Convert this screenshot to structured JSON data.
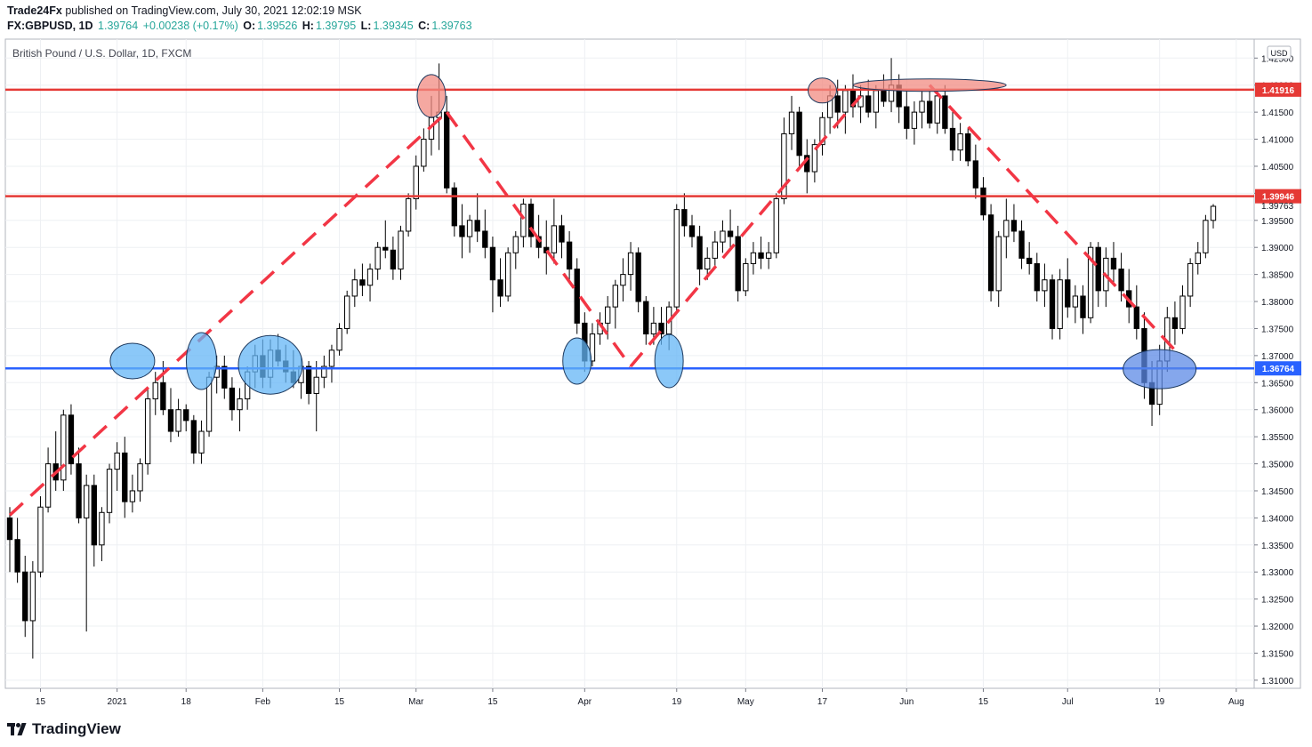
{
  "header": {
    "author": "Trade24Fx",
    "published_text": " published on TradingView.com, July 30, 2021 12:02:19 MSK",
    "symbol": "FX:GBPUSD, 1D",
    "last": "1.39764",
    "change": "+0.00238 (+0.17%)",
    "o_label": "O:",
    "o_val": "1.39526",
    "h_label": "H:",
    "h_val": "1.39795",
    "l_label": "L:",
    "l_val": "1.39345",
    "c_label": "C:",
    "c_val": "1.39763"
  },
  "footer": {
    "brand": "TradingView"
  },
  "colors": {
    "up": "#ffffff",
    "down": "#000000",
    "resistance": "#e53935",
    "support": "#2962ff",
    "trend": "#f23645",
    "ellipse_red": "#f28b82",
    "ellipse_blue": "#64b5f6",
    "grid": "#eef0f3"
  },
  "chart_data": {
    "type": "candlestick",
    "title": "British Pound / U.S. Dollar, 1D, FXCM",
    "currency_badge": "USD",
    "ylim": [
      1.3085,
      1.4285
    ],
    "y_ticks": [
      "1.42500",
      "1.42000",
      "1.41500",
      "1.41000",
      "1.40500",
      "1.40000",
      "1.39500",
      "1.39000",
      "1.38500",
      "1.38000",
      "1.37500",
      "1.37000",
      "1.36500",
      "1.36000",
      "1.35500",
      "1.35000",
      "1.34500",
      "1.34000",
      "1.33500",
      "1.33000",
      "1.32500",
      "1.32000",
      "1.31500",
      "1.31000"
    ],
    "x_ticks": [
      {
        "label": "15",
        "idx": 4
      },
      {
        "label": "2021",
        "idx": 14
      },
      {
        "label": "18",
        "idx": 23
      },
      {
        "label": "Feb",
        "idx": 33
      },
      {
        "label": "15",
        "idx": 43
      },
      {
        "label": "Mar",
        "idx": 53
      },
      {
        "label": "15",
        "idx": 63
      },
      {
        "label": "Apr",
        "idx": 75
      },
      {
        "label": "19",
        "idx": 87
      },
      {
        "label": "May",
        "idx": 96
      },
      {
        "label": "17",
        "idx": 106
      },
      {
        "label": "Jun",
        "idx": 117
      },
      {
        "label": "15",
        "idx": 127
      },
      {
        "label": "Jul",
        "idx": 138
      },
      {
        "label": "19",
        "idx": 150
      },
      {
        "label": "Aug",
        "idx": 160
      }
    ],
    "levels": [
      {
        "name": "resistance-high",
        "value": 1.41916,
        "label": "1.41916",
        "color": "#e53935"
      },
      {
        "name": "resistance-mid",
        "value": 1.39946,
        "label": "1.39946",
        "color": "#e53935"
      },
      {
        "name": "support",
        "value": 1.36764,
        "label": "1.36764",
        "color": "#2962ff"
      }
    ],
    "last_price_label": "1.39763",
    "candles": [
      {
        "o": 1.34,
        "h": 1.342,
        "l": 1.33,
        "c": 1.336
      },
      {
        "o": 1.336,
        "h": 1.34,
        "l": 1.328,
        "c": 1.33
      },
      {
        "o": 1.33,
        "h": 1.333,
        "l": 1.318,
        "c": 1.321
      },
      {
        "o": 1.321,
        "h": 1.332,
        "l": 1.314,
        "c": 1.33
      },
      {
        "o": 1.33,
        "h": 1.344,
        "l": 1.329,
        "c": 1.342
      },
      {
        "o": 1.342,
        "h": 1.353,
        "l": 1.341,
        "c": 1.35
      },
      {
        "o": 1.35,
        "h": 1.356,
        "l": 1.345,
        "c": 1.347
      },
      {
        "o": 1.347,
        "h": 1.36,
        "l": 1.345,
        "c": 1.359
      },
      {
        "o": 1.359,
        "h": 1.361,
        "l": 1.348,
        "c": 1.35
      },
      {
        "o": 1.35,
        "h": 1.353,
        "l": 1.339,
        "c": 1.34
      },
      {
        "o": 1.34,
        "h": 1.348,
        "l": 1.319,
        "c": 1.346
      },
      {
        "o": 1.346,
        "h": 1.348,
        "l": 1.331,
        "c": 1.335
      },
      {
        "o": 1.335,
        "h": 1.342,
        "l": 1.332,
        "c": 1.341
      },
      {
        "o": 1.341,
        "h": 1.35,
        "l": 1.339,
        "c": 1.349
      },
      {
        "o": 1.349,
        "h": 1.354,
        "l": 1.345,
        "c": 1.352
      },
      {
        "o": 1.352,
        "h": 1.355,
        "l": 1.34,
        "c": 1.343
      },
      {
        "o": 1.343,
        "h": 1.348,
        "l": 1.341,
        "c": 1.345
      },
      {
        "o": 1.345,
        "h": 1.351,
        "l": 1.343,
        "c": 1.35
      },
      {
        "o": 1.35,
        "h": 1.364,
        "l": 1.348,
        "c": 1.362
      },
      {
        "o": 1.362,
        "h": 1.367,
        "l": 1.359,
        "c": 1.365
      },
      {
        "o": 1.365,
        "h": 1.369,
        "l": 1.359,
        "c": 1.36
      },
      {
        "o": 1.36,
        "h": 1.364,
        "l": 1.354,
        "c": 1.356
      },
      {
        "o": 1.356,
        "h": 1.362,
        "l": 1.355,
        "c": 1.36
      },
      {
        "o": 1.36,
        "h": 1.361,
        "l": 1.356,
        "c": 1.358
      },
      {
        "o": 1.358,
        "h": 1.359,
        "l": 1.35,
        "c": 1.352
      },
      {
        "o": 1.352,
        "h": 1.358,
        "l": 1.35,
        "c": 1.356
      },
      {
        "o": 1.356,
        "h": 1.367,
        "l": 1.355,
        "c": 1.366
      },
      {
        "o": 1.366,
        "h": 1.37,
        "l": 1.363,
        "c": 1.368
      },
      {
        "o": 1.368,
        "h": 1.37,
        "l": 1.362,
        "c": 1.364
      },
      {
        "o": 1.364,
        "h": 1.366,
        "l": 1.358,
        "c": 1.36
      },
      {
        "o": 1.36,
        "h": 1.364,
        "l": 1.356,
        "c": 1.362
      },
      {
        "o": 1.362,
        "h": 1.368,
        "l": 1.36,
        "c": 1.367
      },
      {
        "o": 1.367,
        "h": 1.372,
        "l": 1.364,
        "c": 1.37
      },
      {
        "o": 1.37,
        "h": 1.373,
        "l": 1.364,
        "c": 1.366
      },
      {
        "o": 1.366,
        "h": 1.373,
        "l": 1.364,
        "c": 1.371
      },
      {
        "o": 1.371,
        "h": 1.374,
        "l": 1.368,
        "c": 1.369
      },
      {
        "o": 1.369,
        "h": 1.372,
        "l": 1.365,
        "c": 1.367
      },
      {
        "o": 1.367,
        "h": 1.371,
        "l": 1.364,
        "c": 1.365
      },
      {
        "o": 1.365,
        "h": 1.37,
        "l": 1.362,
        "c": 1.368
      },
      {
        "o": 1.368,
        "h": 1.369,
        "l": 1.361,
        "c": 1.363
      },
      {
        "o": 1.363,
        "h": 1.369,
        "l": 1.356,
        "c": 1.366
      },
      {
        "o": 1.366,
        "h": 1.37,
        "l": 1.364,
        "c": 1.368
      },
      {
        "o": 1.368,
        "h": 1.372,
        "l": 1.365,
        "c": 1.371
      },
      {
        "o": 1.371,
        "h": 1.376,
        "l": 1.37,
        "c": 1.375
      },
      {
        "o": 1.375,
        "h": 1.382,
        "l": 1.374,
        "c": 1.381
      },
      {
        "o": 1.381,
        "h": 1.386,
        "l": 1.379,
        "c": 1.384
      },
      {
        "o": 1.384,
        "h": 1.387,
        "l": 1.381,
        "c": 1.383
      },
      {
        "o": 1.383,
        "h": 1.387,
        "l": 1.38,
        "c": 1.386
      },
      {
        "o": 1.386,
        "h": 1.391,
        "l": 1.384,
        "c": 1.39
      },
      {
        "o": 1.39,
        "h": 1.395,
        "l": 1.388,
        "c": 1.3895
      },
      {
        "o": 1.3895,
        "h": 1.392,
        "l": 1.384,
        "c": 1.386
      },
      {
        "o": 1.386,
        "h": 1.394,
        "l": 1.384,
        "c": 1.393
      },
      {
        "o": 1.393,
        "h": 1.4,
        "l": 1.392,
        "c": 1.399
      },
      {
        "o": 1.399,
        "h": 1.407,
        "l": 1.397,
        "c": 1.405
      },
      {
        "o": 1.405,
        "h": 1.412,
        "l": 1.404,
        "c": 1.41
      },
      {
        "o": 1.41,
        "h": 1.418,
        "l": 1.407,
        "c": 1.414
      },
      {
        "o": 1.414,
        "h": 1.424,
        "l": 1.408,
        "c": 1.415
      },
      {
        "o": 1.415,
        "h": 1.418,
        "l": 1.4,
        "c": 1.401
      },
      {
        "o": 1.401,
        "h": 1.402,
        "l": 1.392,
        "c": 1.394
      },
      {
        "o": 1.394,
        "h": 1.398,
        "l": 1.388,
        "c": 1.392
      },
      {
        "o": 1.392,
        "h": 1.396,
        "l": 1.389,
        "c": 1.395
      },
      {
        "o": 1.395,
        "h": 1.4,
        "l": 1.391,
        "c": 1.393
      },
      {
        "o": 1.393,
        "h": 1.397,
        "l": 1.388,
        "c": 1.39
      },
      {
        "o": 1.39,
        "h": 1.392,
        "l": 1.378,
        "c": 1.384
      },
      {
        "o": 1.384,
        "h": 1.388,
        "l": 1.379,
        "c": 1.381
      },
      {
        "o": 1.381,
        "h": 1.39,
        "l": 1.38,
        "c": 1.389
      },
      {
        "o": 1.389,
        "h": 1.393,
        "l": 1.386,
        "c": 1.392
      },
      {
        "o": 1.392,
        "h": 1.399,
        "l": 1.39,
        "c": 1.398
      },
      {
        "o": 1.398,
        "h": 1.399,
        "l": 1.39,
        "c": 1.392
      },
      {
        "o": 1.392,
        "h": 1.396,
        "l": 1.388,
        "c": 1.39
      },
      {
        "o": 1.39,
        "h": 1.395,
        "l": 1.385,
        "c": 1.389
      },
      {
        "o": 1.389,
        "h": 1.399,
        "l": 1.387,
        "c": 1.394
      },
      {
        "o": 1.394,
        "h": 1.396,
        "l": 1.388,
        "c": 1.391
      },
      {
        "o": 1.391,
        "h": 1.393,
        "l": 1.384,
        "c": 1.386
      },
      {
        "o": 1.386,
        "h": 1.388,
        "l": 1.374,
        "c": 1.376
      },
      {
        "o": 1.376,
        "h": 1.378,
        "l": 1.367,
        "c": 1.369
      },
      {
        "o": 1.369,
        "h": 1.376,
        "l": 1.368,
        "c": 1.374
      },
      {
        "o": 1.374,
        "h": 1.378,
        "l": 1.372,
        "c": 1.376
      },
      {
        "o": 1.376,
        "h": 1.381,
        "l": 1.373,
        "c": 1.379
      },
      {
        "o": 1.379,
        "h": 1.384,
        "l": 1.375,
        "c": 1.383
      },
      {
        "o": 1.383,
        "h": 1.388,
        "l": 1.38,
        "c": 1.385
      },
      {
        "o": 1.385,
        "h": 1.391,
        "l": 1.382,
        "c": 1.389
      },
      {
        "o": 1.389,
        "h": 1.39,
        "l": 1.378,
        "c": 1.38
      },
      {
        "o": 1.38,
        "h": 1.381,
        "l": 1.372,
        "c": 1.374
      },
      {
        "o": 1.374,
        "h": 1.379,
        "l": 1.372,
        "c": 1.376
      },
      {
        "o": 1.376,
        "h": 1.379,
        "l": 1.372,
        "c": 1.374
      },
      {
        "o": 1.374,
        "h": 1.38,
        "l": 1.371,
        "c": 1.379
      },
      {
        "o": 1.379,
        "h": 1.398,
        "l": 1.378,
        "c": 1.397
      },
      {
        "o": 1.397,
        "h": 1.4,
        "l": 1.392,
        "c": 1.394
      },
      {
        "o": 1.394,
        "h": 1.396,
        "l": 1.39,
        "c": 1.392
      },
      {
        "o": 1.392,
        "h": 1.394,
        "l": 1.383,
        "c": 1.386
      },
      {
        "o": 1.386,
        "h": 1.39,
        "l": 1.384,
        "c": 1.388
      },
      {
        "o": 1.388,
        "h": 1.393,
        "l": 1.386,
        "c": 1.391
      },
      {
        "o": 1.391,
        "h": 1.395,
        "l": 1.389,
        "c": 1.393
      },
      {
        "o": 1.393,
        "h": 1.397,
        "l": 1.39,
        "c": 1.392
      },
      {
        "o": 1.392,
        "h": 1.394,
        "l": 1.38,
        "c": 1.382
      },
      {
        "o": 1.382,
        "h": 1.388,
        "l": 1.381,
        "c": 1.387
      },
      {
        "o": 1.387,
        "h": 1.391,
        "l": 1.385,
        "c": 1.389
      },
      {
        "o": 1.389,
        "h": 1.392,
        "l": 1.386,
        "c": 1.388
      },
      {
        "o": 1.388,
        "h": 1.391,
        "l": 1.386,
        "c": 1.389
      },
      {
        "o": 1.389,
        "h": 1.4,
        "l": 1.388,
        "c": 1.399
      },
      {
        "o": 1.399,
        "h": 1.414,
        "l": 1.398,
        "c": 1.411
      },
      {
        "o": 1.411,
        "h": 1.418,
        "l": 1.408,
        "c": 1.415
      },
      {
        "o": 1.415,
        "h": 1.416,
        "l": 1.405,
        "c": 1.407
      },
      {
        "o": 1.407,
        "h": 1.41,
        "l": 1.4,
        "c": 1.404
      },
      {
        "o": 1.404,
        "h": 1.41,
        "l": 1.402,
        "c": 1.409
      },
      {
        "o": 1.409,
        "h": 1.415,
        "l": 1.407,
        "c": 1.414
      },
      {
        "o": 1.414,
        "h": 1.42,
        "l": 1.411,
        "c": 1.418
      },
      {
        "o": 1.418,
        "h": 1.421,
        "l": 1.412,
        "c": 1.415
      },
      {
        "o": 1.415,
        "h": 1.42,
        "l": 1.411,
        "c": 1.419
      },
      {
        "o": 1.419,
        "h": 1.422,
        "l": 1.414,
        "c": 1.416
      },
      {
        "o": 1.416,
        "h": 1.42,
        "l": 1.413,
        "c": 1.418
      },
      {
        "o": 1.418,
        "h": 1.421,
        "l": 1.414,
        "c": 1.415
      },
      {
        "o": 1.415,
        "h": 1.42,
        "l": 1.412,
        "c": 1.419
      },
      {
        "o": 1.419,
        "h": 1.422,
        "l": 1.416,
        "c": 1.417
      },
      {
        "o": 1.417,
        "h": 1.425,
        "l": 1.415,
        "c": 1.42
      },
      {
        "o": 1.42,
        "h": 1.422,
        "l": 1.413,
        "c": 1.416
      },
      {
        "o": 1.416,
        "h": 1.419,
        "l": 1.41,
        "c": 1.412
      },
      {
        "o": 1.412,
        "h": 1.417,
        "l": 1.409,
        "c": 1.415
      },
      {
        "o": 1.415,
        "h": 1.419,
        "l": 1.412,
        "c": 1.417
      },
      {
        "o": 1.417,
        "h": 1.419,
        "l": 1.412,
        "c": 1.413
      },
      {
        "o": 1.413,
        "h": 1.419,
        "l": 1.411,
        "c": 1.418
      },
      {
        "o": 1.418,
        "h": 1.42,
        "l": 1.411,
        "c": 1.412
      },
      {
        "o": 1.412,
        "h": 1.415,
        "l": 1.406,
        "c": 1.408
      },
      {
        "o": 1.408,
        "h": 1.413,
        "l": 1.406,
        "c": 1.411
      },
      {
        "o": 1.411,
        "h": 1.412,
        "l": 1.405,
        "c": 1.406
      },
      {
        "o": 1.406,
        "h": 1.409,
        "l": 1.399,
        "c": 1.401
      },
      {
        "o": 1.401,
        "h": 1.403,
        "l": 1.395,
        "c": 1.396
      },
      {
        "o": 1.396,
        "h": 1.398,
        "l": 1.38,
        "c": 1.382
      },
      {
        "o": 1.382,
        "h": 1.393,
        "l": 1.379,
        "c": 1.392
      },
      {
        "o": 1.392,
        "h": 1.399,
        "l": 1.388,
        "c": 1.395
      },
      {
        "o": 1.395,
        "h": 1.398,
        "l": 1.391,
        "c": 1.393
      },
      {
        "o": 1.393,
        "h": 1.395,
        "l": 1.386,
        "c": 1.388
      },
      {
        "o": 1.388,
        "h": 1.391,
        "l": 1.385,
        "c": 1.387
      },
      {
        "o": 1.387,
        "h": 1.389,
        "l": 1.38,
        "c": 1.382
      },
      {
        "o": 1.382,
        "h": 1.387,
        "l": 1.379,
        "c": 1.384
      },
      {
        "o": 1.384,
        "h": 1.385,
        "l": 1.373,
        "c": 1.375
      },
      {
        "o": 1.375,
        "h": 1.386,
        "l": 1.373,
        "c": 1.384
      },
      {
        "o": 1.384,
        "h": 1.388,
        "l": 1.377,
        "c": 1.379
      },
      {
        "o": 1.379,
        "h": 1.383,
        "l": 1.376,
        "c": 1.381
      },
      {
        "o": 1.381,
        "h": 1.383,
        "l": 1.374,
        "c": 1.377
      },
      {
        "o": 1.377,
        "h": 1.391,
        "l": 1.376,
        "c": 1.39
      },
      {
        "o": 1.39,
        "h": 1.391,
        "l": 1.379,
        "c": 1.382
      },
      {
        "o": 1.382,
        "h": 1.39,
        "l": 1.379,
        "c": 1.388
      },
      {
        "o": 1.388,
        "h": 1.391,
        "l": 1.383,
        "c": 1.386
      },
      {
        "o": 1.386,
        "h": 1.389,
        "l": 1.38,
        "c": 1.382
      },
      {
        "o": 1.382,
        "h": 1.386,
        "l": 1.376,
        "c": 1.379
      },
      {
        "o": 1.379,
        "h": 1.383,
        "l": 1.373,
        "c": 1.375
      },
      {
        "o": 1.375,
        "h": 1.378,
        "l": 1.362,
        "c": 1.365
      },
      {
        "o": 1.365,
        "h": 1.369,
        "l": 1.357,
        "c": 1.361
      },
      {
        "o": 1.361,
        "h": 1.372,
        "l": 1.359,
        "c": 1.369
      },
      {
        "o": 1.369,
        "h": 1.379,
        "l": 1.367,
        "c": 1.377
      },
      {
        "o": 1.377,
        "h": 1.38,
        "l": 1.372,
        "c": 1.375
      },
      {
        "o": 1.375,
        "h": 1.383,
        "l": 1.374,
        "c": 1.381
      },
      {
        "o": 1.381,
        "h": 1.388,
        "l": 1.379,
        "c": 1.387
      },
      {
        "o": 1.387,
        "h": 1.391,
        "l": 1.385,
        "c": 1.389
      },
      {
        "o": 1.389,
        "h": 1.396,
        "l": 1.388,
        "c": 1.395
      },
      {
        "o": 1.395,
        "h": 1.398,
        "l": 1.3935,
        "c": 1.3976
      }
    ],
    "trendlines": [
      {
        "from": [
          0,
          1.3405
        ],
        "to": [
          57,
          1.415
        ]
      },
      {
        "from": [
          57,
          1.415
        ],
        "to": [
          81,
          1.368
        ]
      },
      {
        "from": [
          81,
          1.368
        ],
        "to": [
          111,
          1.418
        ]
      },
      {
        "from": [
          120,
          1.42
        ],
        "to": [
          152,
          1.371
        ]
      }
    ],
    "highlights": [
      {
        "name": "support-touch-1",
        "center": [
          16,
          1.369
        ],
        "color": "#64b5f6"
      },
      {
        "name": "support-touch-2",
        "center": [
          25,
          1.369
        ],
        "color": "#64b5f6"
      },
      {
        "name": "support-touch-3",
        "center": [
          34,
          1.3683
        ],
        "color": "#64b5f6"
      },
      {
        "name": "support-touch-4",
        "center": [
          74,
          1.369
        ],
        "color": "#64b5f6"
      },
      {
        "name": "support-touch-5",
        "center": [
          86,
          1.369
        ],
        "color": "#64b5f6"
      },
      {
        "name": "support-touch-6",
        "center": [
          150,
          1.3675
        ],
        "color": "#5c8ae6"
      },
      {
        "name": "top-1",
        "center": [
          55,
          1.418
        ],
        "color": "#f28b82"
      },
      {
        "name": "top-2",
        "center": [
          106,
          1.419
        ],
        "color": "#f28b82"
      },
      {
        "name": "top-3",
        "center": [
          120,
          1.42
        ],
        "color": "#f28b82"
      }
    ]
  }
}
